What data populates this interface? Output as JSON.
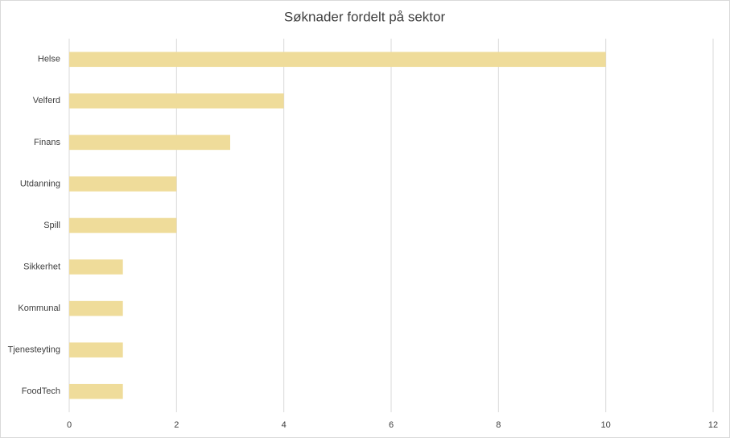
{
  "chart_data": {
    "type": "hbar",
    "title": "Søknader fordelt på sektor",
    "categories": [
      "Helse",
      "Velferd",
      "Finans",
      "Utdanning",
      "Spill",
      "Sikkerhet",
      "Kommunal",
      "Tjenesteyting",
      "FoodTech"
    ],
    "values": [
      10,
      4,
      3,
      2,
      2,
      1,
      1,
      1,
      1
    ],
    "color": "#efdc9a",
    "xlim": [
      0,
      12
    ],
    "xticks": [
      0,
      2,
      4,
      6,
      8,
      10,
      12
    ],
    "grid": true
  }
}
